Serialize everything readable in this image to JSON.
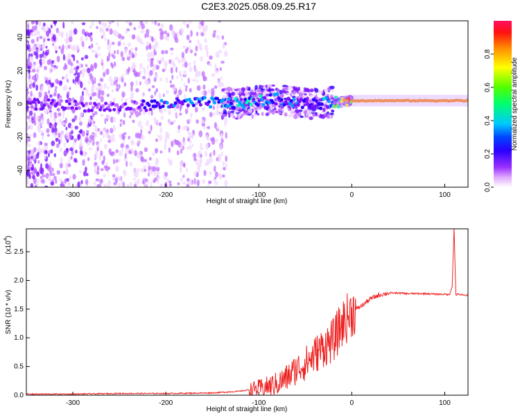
{
  "title": "C2E3.2025.058.09.25.R17",
  "chart_data": [
    {
      "type": "heatmap",
      "xlabel": "Height of straight line (km)",
      "ylabel": "Frequency (Hz)",
      "xlim": [
        -350,
        125
      ],
      "ylim": [
        -50,
        50
      ],
      "xticks": [
        -300,
        -200,
        -100,
        0,
        100
      ],
      "yticks": [
        -40,
        -20,
        0,
        20,
        40
      ],
      "colorbar": {
        "label": "Normalized spectral amplitude",
        "range": [
          0.0,
          1.0
        ],
        "ticks": [
          "0.0",
          "0.2",
          "0.4",
          "0.6",
          "0.8"
        ],
        "colormap": "rainbow (white → magenta → blue → cyan → green → yellow → red)"
      },
      "ridge": {
        "description": "main spectral ridge near 0 Hz",
        "x": [
          -350,
          -300,
          -250,
          -200,
          -150,
          -120,
          -100,
          -80,
          -60,
          -40,
          -20,
          0,
          50,
          100,
          125
        ],
        "freq": [
          0,
          -1,
          -2,
          0,
          1,
          0,
          2,
          3,
          1,
          0,
          1,
          2,
          2,
          2,
          2
        ],
        "amplitude": [
          0.25,
          0.2,
          0.2,
          0.35,
          0.4,
          0.5,
          0.45,
          0.4,
          0.35,
          0.3,
          0.5,
          0.95,
          0.95,
          0.95,
          0.9
        ]
      }
    },
    {
      "type": "line",
      "xlabel": "Height of straight line (km)",
      "ylabel": "SNR (10 * v/v)",
      "y_scale_note": "(x10",
      "y_scale_exp": "4",
      "xlim": [
        -350,
        125
      ],
      "ylim": [
        0,
        2.9
      ],
      "xticks": [
        -300,
        -200,
        -100,
        0,
        100
      ],
      "yticks": [
        "0.0",
        "0.5",
        "1.0",
        "1.5",
        "2.0",
        "2.5"
      ],
      "color": "#ee2020",
      "series": [
        {
          "x": [
            -350,
            -300,
            -250,
            -200,
            -150,
            -120,
            -100,
            -90,
            -80,
            -70,
            -60,
            -50,
            -40,
            -30,
            -20,
            -15,
            -10,
            -5,
            0,
            10,
            20,
            30,
            40,
            50,
            60,
            70,
            80,
            90,
            100,
            105,
            108,
            110,
            112,
            115,
            120,
            125
          ],
          "values": [
            0.02,
            0.02,
            0.03,
            0.03,
            0.04,
            0.07,
            0.12,
            0.15,
            0.2,
            0.3,
            0.45,
            0.55,
            0.7,
            0.85,
            0.95,
            1.1,
            1.25,
            1.35,
            1.45,
            1.55,
            1.68,
            1.75,
            1.78,
            1.78,
            1.77,
            1.77,
            1.77,
            1.76,
            1.76,
            1.75,
            1.9,
            2.9,
            1.75,
            1.76,
            1.74,
            1.74
          ]
        }
      ]
    }
  ]
}
